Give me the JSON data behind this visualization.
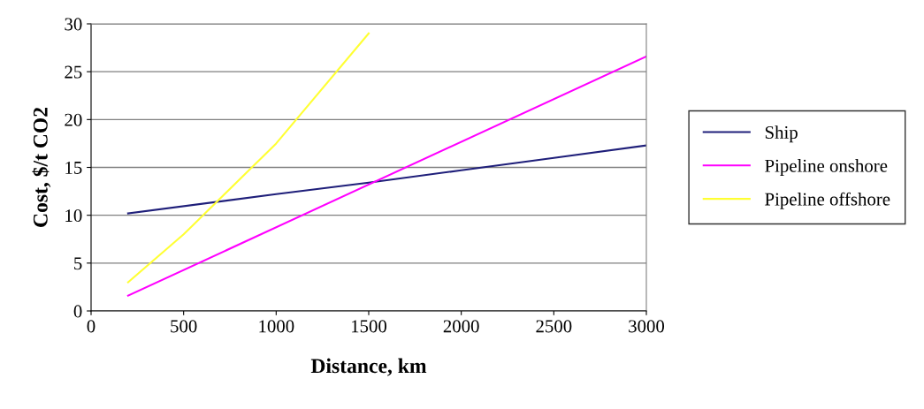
{
  "chart_data": {
    "type": "line",
    "xlabel": "Distance, km",
    "ylabel": "Cost, $/t CO2",
    "xlim": [
      0,
      3000
    ],
    "xticks": [
      0,
      500,
      1000,
      1500,
      2000,
      2500,
      3000
    ],
    "ylim": [
      0,
      30
    ],
    "yticks": [
      0,
      5,
      10,
      15,
      20,
      25,
      30
    ],
    "grid": "y",
    "legend": "right",
    "marker": "none",
    "line_style": "solid",
    "series": [
      {
        "name": "Ship",
        "color": "#1f1f7a",
        "x": [
          200,
          1000,
          1500,
          2000,
          2500,
          3000
        ],
        "values": [
          10.2,
          12.2,
          13.4,
          14.7,
          16.0,
          17.3
        ]
      },
      {
        "name": "Pipeline onshore",
        "color": "#ff00ff",
        "x": [
          200,
          3000
        ],
        "values": [
          1.6,
          26.6
        ]
      },
      {
        "name": "Pipeline offshore",
        "color": "#ffff33",
        "x": [
          200,
          500,
          1000,
          1500
        ],
        "values": [
          3.0,
          8.0,
          17.5,
          29.0
        ]
      }
    ]
  }
}
